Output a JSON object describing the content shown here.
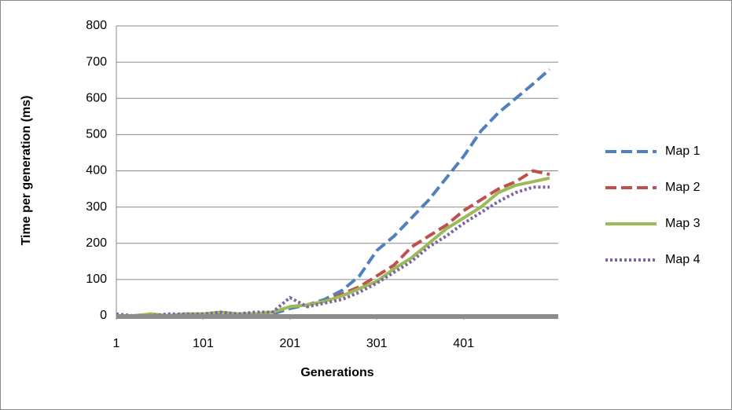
{
  "chart_data": {
    "type": "line",
    "x_label": "Generations",
    "y_label": "Time per generation (ms)",
    "x": [
      1,
      21,
      41,
      61,
      81,
      101,
      121,
      141,
      161,
      181,
      201,
      221,
      241,
      261,
      281,
      301,
      321,
      341,
      361,
      381,
      401,
      421,
      441,
      461,
      481,
      500
    ],
    "series": [
      {
        "name": "Map 1",
        "color": "#4f81bd",
        "line_style": "dashed",
        "values": [
          0,
          0,
          0,
          0,
          0,
          0,
          5,
          5,
          5,
          5,
          20,
          30,
          45,
          70,
          110,
          180,
          220,
          270,
          320,
          380,
          440,
          510,
          560,
          600,
          640,
          680
        ]
      },
      {
        "name": "Map 2",
        "color": "#c0504d",
        "line_style": "dashed",
        "values": [
          0,
          0,
          5,
          0,
          5,
          5,
          5,
          5,
          5,
          10,
          25,
          30,
          40,
          60,
          80,
          110,
          140,
          190,
          220,
          250,
          290,
          320,
          350,
          370,
          400,
          390
        ]
      },
      {
        "name": "Map 3",
        "color": "#9bbb59",
        "line_style": "solid",
        "values": [
          0,
          0,
          5,
          0,
          5,
          5,
          10,
          5,
          5,
          10,
          25,
          30,
          40,
          55,
          75,
          95,
          130,
          160,
          200,
          240,
          270,
          300,
          340,
          360,
          370,
          380
        ]
      },
      {
        "name": "Map 4",
        "color": "#8064a2",
        "line_style": "dotted",
        "values": [
          5,
          0,
          0,
          5,
          5,
          5,
          10,
          5,
          10,
          10,
          50,
          25,
          35,
          45,
          65,
          90,
          120,
          150,
          190,
          220,
          255,
          285,
          315,
          340,
          355,
          355
        ]
      }
    ],
    "xlim": [
      1,
      510
    ],
    "xticks": [
      1,
      101,
      201,
      301,
      401
    ],
    "ylim": [
      0,
      800
    ],
    "yticks": [
      0,
      100,
      200,
      300,
      400,
      500,
      600,
      700,
      800
    ],
    "grid": true,
    "legend": "right"
  }
}
